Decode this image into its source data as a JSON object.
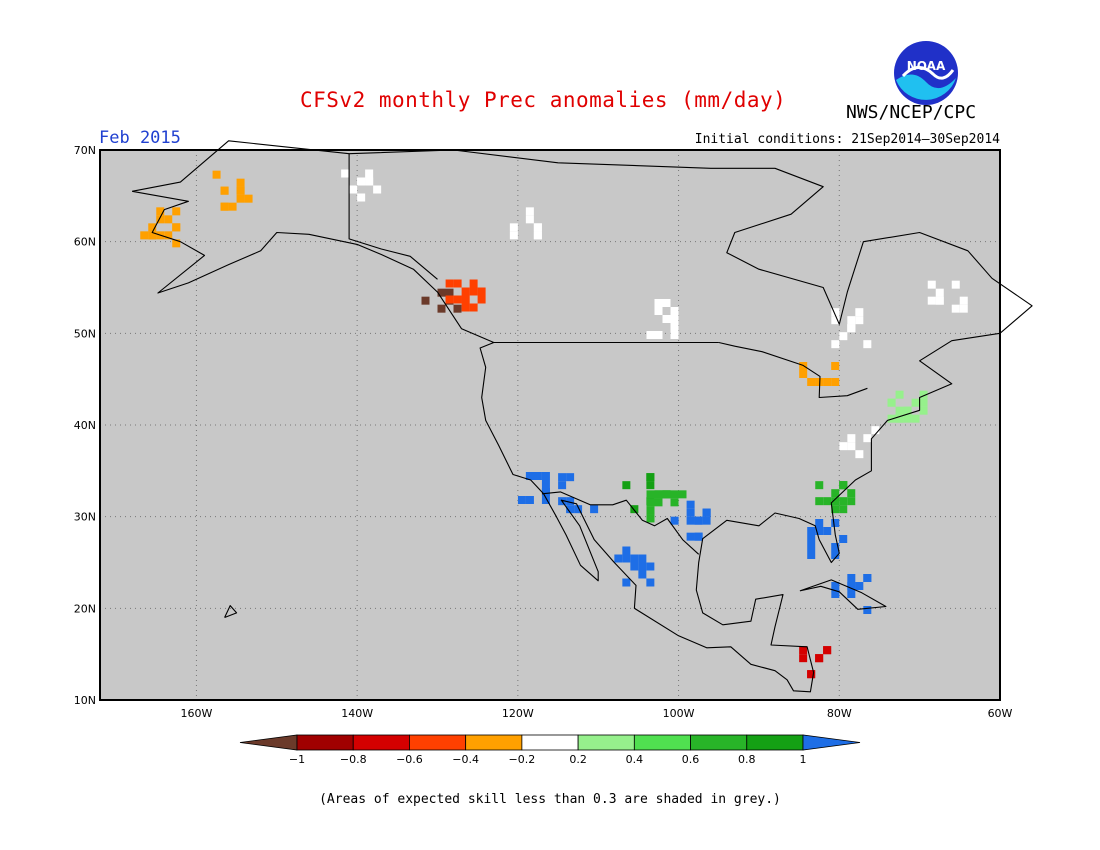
{
  "header": {
    "title": "CFSv2 monthly Prec anomalies (mm/day)",
    "agency": "NWS/NCEP/CPC",
    "logo_text": "NOAA",
    "period": "Feb 2015",
    "initial_conditions": "Initial conditions: 21Sep2014–30Sep2014"
  },
  "map": {
    "lon_range": [
      -172,
      -60
    ],
    "lat_range": [
      10,
      70
    ],
    "lat_ticks": [
      {
        "value": 70,
        "label": "70N"
      },
      {
        "value": 60,
        "label": "60N"
      },
      {
        "value": 50,
        "label": "50N"
      },
      {
        "value": 40,
        "label": "40N"
      },
      {
        "value": 30,
        "label": "30N"
      },
      {
        "value": 20,
        "label": "20N"
      },
      {
        "value": 10,
        "label": "10N"
      }
    ],
    "lon_ticks": [
      {
        "value": -160,
        "label": "160W"
      },
      {
        "value": -140,
        "label": "140W"
      },
      {
        "value": -120,
        "label": "120W"
      },
      {
        "value": -100,
        "label": "100W"
      },
      {
        "value": -80,
        "label": "80W"
      },
      {
        "value": -60,
        "label": "60W"
      }
    ],
    "grid": true,
    "background": "#c8c8c8",
    "anomaly_regions": [
      {
        "name": "alaska-west",
        "lat": 62,
        "lon": -165,
        "class": 4
      },
      {
        "name": "alaska-north",
        "lat": 66,
        "lon": -156,
        "class": 4
      },
      {
        "name": "yukon-north",
        "lat": 67,
        "lon": -140,
        "class": 5
      },
      {
        "name": "nwt-west",
        "lat": 62,
        "lon": -120,
        "class": 5
      },
      {
        "name": "bc-coast",
        "lat": 54,
        "lon": -130,
        "class": 0
      },
      {
        "name": "bc-coast-2",
        "lat": 55,
        "lon": -127,
        "class": 3
      },
      {
        "name": "hudson-south",
        "lat": 52,
        "lon": -102,
        "class": 5
      },
      {
        "name": "ontario",
        "lat": 51,
        "lon": -79,
        "class": 5
      },
      {
        "name": "quebec-labrador",
        "lat": 54,
        "lon": -67,
        "class": 5
      },
      {
        "name": "great-lakes",
        "lat": 46,
        "lon": -83,
        "class": 4
      },
      {
        "name": "mid-atlantic",
        "lat": 39,
        "lon": -78,
        "class": 5
      },
      {
        "name": "new-england",
        "lat": 42,
        "lon": -72,
        "class": 6
      },
      {
        "name": "southeast-coast",
        "lat": 33,
        "lon": -81,
        "class": 8
      },
      {
        "name": "florida",
        "lat": 28,
        "lon": -82,
        "class": 10
      },
      {
        "name": "california-south",
        "lat": 34,
        "lon": -118,
        "class": 10
      },
      {
        "name": "arizona",
        "lat": 33,
        "lon": -113,
        "class": 10
      },
      {
        "name": "new-mexico",
        "lat": 33,
        "lon": -106,
        "class": 9
      },
      {
        "name": "texas-west",
        "lat": 32,
        "lon": -102,
        "class": 8
      },
      {
        "name": "texas-central",
        "lat": 30,
        "lon": -99,
        "class": 10
      },
      {
        "name": "mexico-west",
        "lat": 25,
        "lon": -106,
        "class": 10
      },
      {
        "name": "cuba",
        "lat": 22,
        "lon": -79,
        "class": 10
      },
      {
        "name": "central-america",
        "lat": 15,
        "lon": -84,
        "class": 2
      }
    ]
  },
  "colorbar": {
    "colors": [
      "#6b3a2a",
      "#a00000",
      "#d40000",
      "#ff4000",
      "#ffa000",
      "#ffffff",
      "#96f08c",
      "#50e050",
      "#28b428",
      "#14a014",
      "#1e6ee6"
    ],
    "labels": [
      "−1",
      "−0.8",
      "−0.6",
      "−0.4",
      "−0.2",
      "0.2",
      "0.4",
      "0.6",
      "0.8",
      "1"
    ]
  },
  "footnote": "(Areas of expected skill less than 0.3 are shaded in grey.)"
}
